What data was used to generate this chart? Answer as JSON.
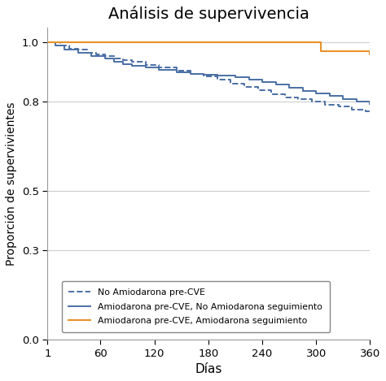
{
  "title": "Análisis de supervivencia",
  "xlabel": "Días",
  "ylabel": "Proporción de supervivientes",
  "xlim": [
    1,
    360
  ],
  "ylim": [
    0.0,
    1.05
  ],
  "yticks": [
    0.0,
    0.3,
    0.5,
    0.8,
    1.0
  ],
  "xticks": [
    1,
    60,
    120,
    180,
    240,
    300,
    360
  ],
  "grid_color": "#cccccc",
  "curve1_color": "#4a6fa5",
  "curve2_color": "#4a6fa5",
  "curve3_color": "#e8922a",
  "curve1_label": "No Amiodarona pre-CVE",
  "curve2_label": "Amiodarona pre-CVE, No Amiodarona seguimiento",
  "curve3_label": "Amiodarona pre-CVE, Amiodarona seguimiento",
  "curve1_x": [
    1,
    15,
    25,
    35,
    45,
    55,
    65,
    75,
    85,
    95,
    110,
    125,
    145,
    160,
    175,
    190,
    205,
    220,
    235,
    250,
    265,
    280,
    295,
    310,
    325,
    340,
    355,
    360
  ],
  "curve1_y": [
    1.0,
    0.99,
    0.98,
    0.975,
    0.965,
    0.96,
    0.955,
    0.945,
    0.94,
    0.935,
    0.925,
    0.915,
    0.905,
    0.895,
    0.885,
    0.875,
    0.862,
    0.85,
    0.84,
    0.825,
    0.815,
    0.81,
    0.8,
    0.79,
    0.785,
    0.775,
    0.768,
    0.76
  ],
  "curve2_x": [
    1,
    10,
    20,
    35,
    50,
    65,
    75,
    85,
    95,
    110,
    125,
    145,
    160,
    175,
    190,
    210,
    225,
    240,
    255,
    270,
    285,
    300,
    315,
    330,
    345,
    360
  ],
  "curve2_y": [
    1.0,
    0.99,
    0.975,
    0.965,
    0.955,
    0.945,
    0.935,
    0.928,
    0.922,
    0.915,
    0.908,
    0.9,
    0.895,
    0.892,
    0.888,
    0.882,
    0.875,
    0.868,
    0.858,
    0.848,
    0.838,
    0.83,
    0.82,
    0.81,
    0.8,
    0.793
  ],
  "curve3_x": [
    1,
    15,
    290,
    305,
    360
  ],
  "curve3_y": [
    1.0,
    1.0,
    1.0,
    0.97,
    0.96
  ]
}
